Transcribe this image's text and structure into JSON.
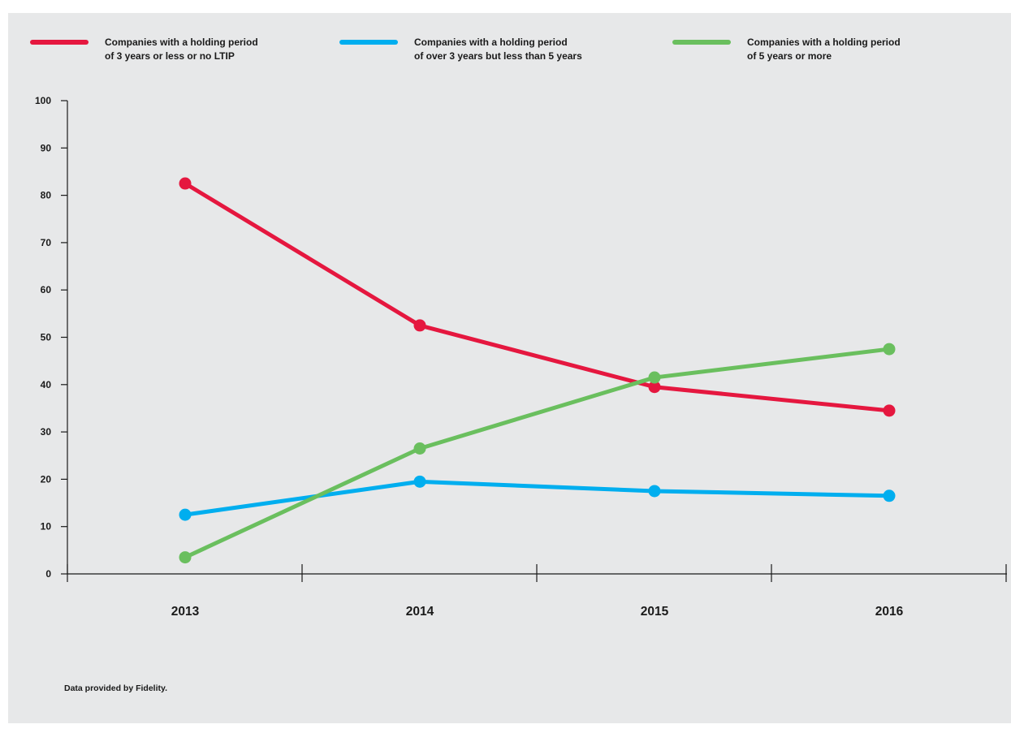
{
  "chart_data": {
    "type": "line",
    "categories": [
      "2013",
      "2014",
      "2015",
      "2016"
    ],
    "series": [
      {
        "name_lines": [
          "Companies with a holding period",
          "of 3 years or less or no LTIP"
        ],
        "values": [
          82.5,
          52.5,
          39.5,
          34.5
        ],
        "color": "#e5173f"
      },
      {
        "name_lines": [
          "Companies with a holding period",
          "of over 3 years but less than 5 years"
        ],
        "values": [
          12.5,
          19.5,
          17.5,
          16.5
        ],
        "color": "#00aeef"
      },
      {
        "name_lines": [
          "Companies with a holding period",
          "of 5 years or more"
        ],
        "values": [
          3.5,
          26.5,
          41.5,
          47.5
        ],
        "color": "#6abf5e"
      }
    ],
    "ylim": [
      0,
      100
    ],
    "yticks": [
      "0",
      "10",
      "20",
      "30",
      "40",
      "50",
      "60",
      "70",
      "80",
      "90",
      "100"
    ],
    "legend_position": "top",
    "grid": false
  },
  "footnote": "Data provided by Fidelity."
}
